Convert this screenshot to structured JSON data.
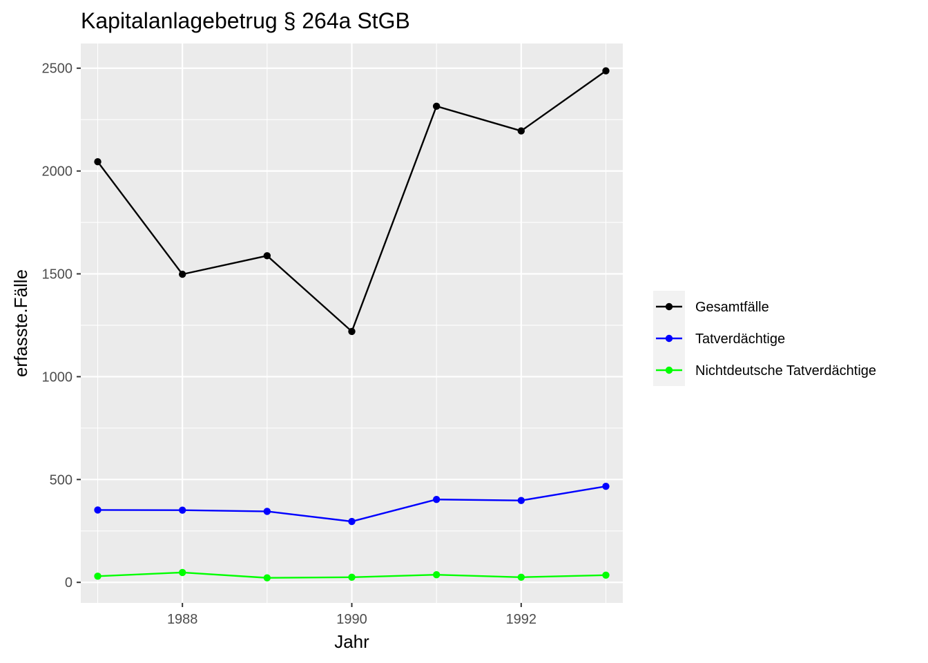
{
  "chart_data": {
    "type": "line",
    "title": "Kapitalanlagebetrug § 264a StGB",
    "xlabel": "Jahr",
    "ylabel": "erfasste.Fälle",
    "x": [
      1987,
      1988,
      1989,
      1990,
      1991,
      1992,
      1993
    ],
    "xlim": [
      1986.8,
      1993.2
    ],
    "ylim": [
      -100,
      2620
    ],
    "x_ticks": [
      1988,
      1990,
      1992
    ],
    "y_ticks": [
      0,
      500,
      1000,
      1500,
      2000,
      2500
    ],
    "grid": true,
    "legend_position": "right",
    "series": [
      {
        "name": "Gesamtfälle",
        "color": "#000000",
        "values": [
          2045,
          1498,
          1588,
          1220,
          2315,
          2195,
          2487
        ]
      },
      {
        "name": "Tatverdächtige",
        "color": "#0000ff",
        "values": [
          352,
          351,
          345,
          296,
          403,
          398,
          467
        ]
      },
      {
        "name": "Nichtdeutsche Tatverdächtige",
        "color": "#00ff00",
        "values": [
          30,
          48,
          22,
          25,
          37,
          25,
          35
        ]
      }
    ]
  }
}
